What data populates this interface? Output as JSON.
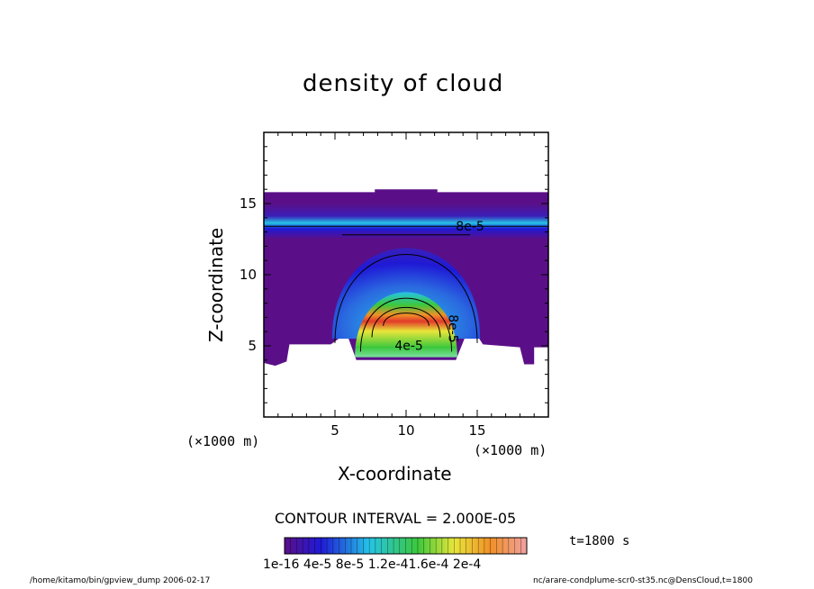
{
  "chart_data": {
    "type": "heatmap",
    "title": "density of cloud",
    "xlabel": "X-coordinate",
    "ylabel": "Z-coordinate",
    "x_unit": "(×1000 m)",
    "y_unit": "(×1000 m)",
    "xlim": [
      0,
      20
    ],
    "ylim": [
      0,
      20
    ],
    "x_ticks": [
      5,
      10,
      15
    ],
    "y_ticks": [
      5,
      10,
      15
    ],
    "contour_labels": [
      "8e-5",
      "4e-5",
      "8e-5"
    ],
    "contour_interval_text": "CONTOUR INTERVAL = 2.000E-05",
    "time_text": "t=1800 s",
    "colorbar_tick_text": "1e-16  4e-5  8e-5  1.2e-41.6e-4  2e-4",
    "colorbar_ticks": [
      "1e-16",
      "4e-5",
      "8e-5",
      "1.2e-4",
      "1.6e-4",
      "2e-4"
    ],
    "value_range": [
      0,
      0.0002
    ],
    "colors": {
      "low": "#5a0f88",
      "mid": "#1f1ad6",
      "cyan": "#25c3e6",
      "green": "#3cc83c",
      "yellow": "#e8e63a",
      "orange": "#f09028",
      "red": "#e23a2a"
    }
  },
  "footer": {
    "left": "/home/kitamo/bin/gpview_dump  2006-02-17",
    "right": "nc/arare-condplume-scr0-st35.nc@DensCloud,t=1800"
  }
}
